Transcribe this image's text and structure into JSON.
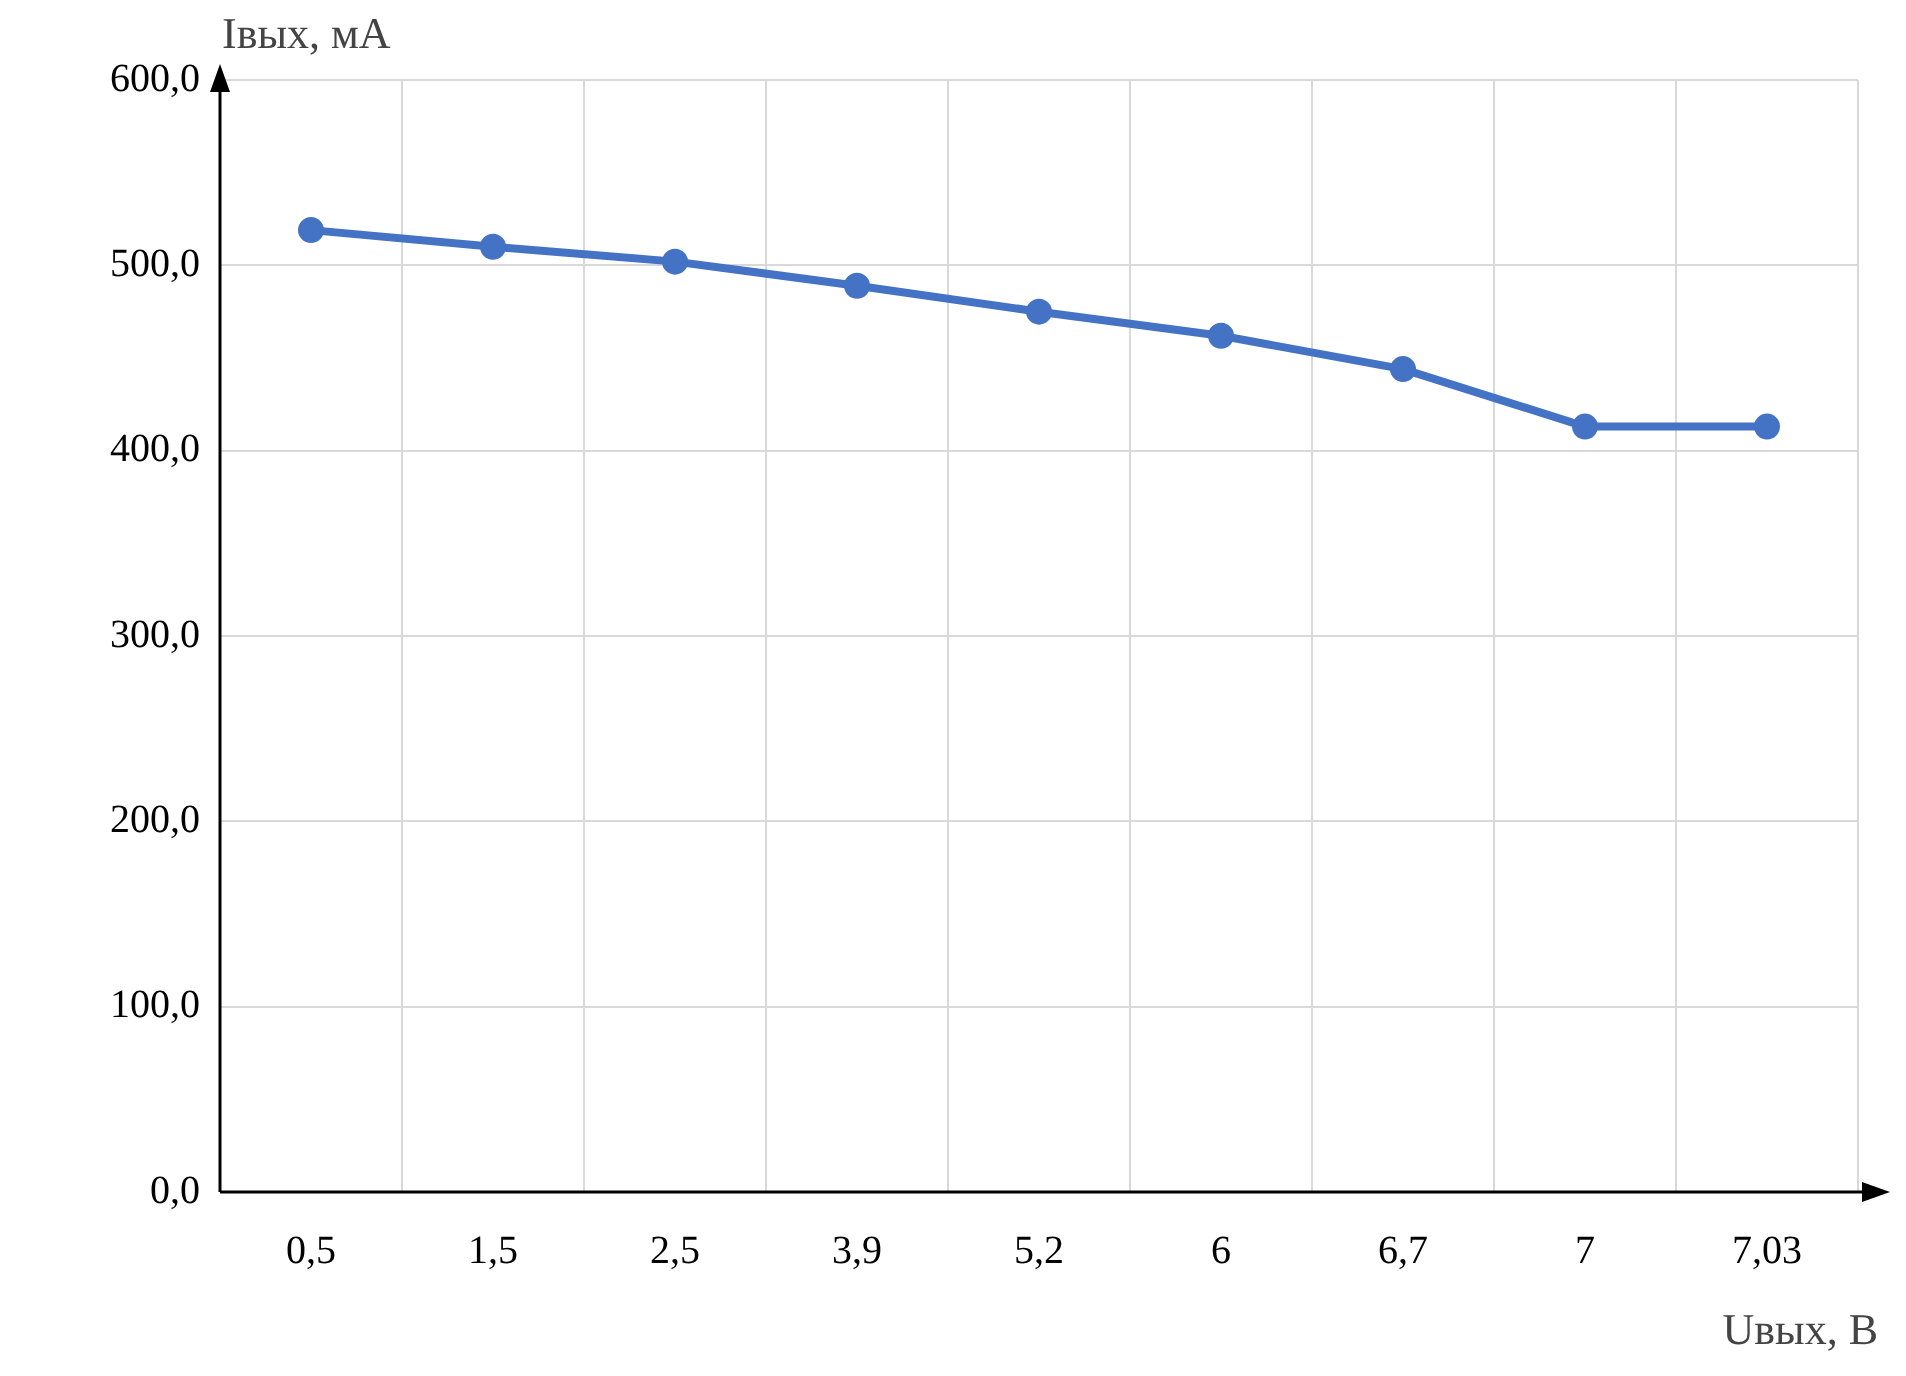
{
  "chart_data": {
    "type": "line",
    "xlabel": "Uвых, В",
    "ylabel": "Iвых, мА",
    "categories": [
      "0,5",
      "1,5",
      "2,5",
      "3,9",
      "5,2",
      "6",
      "6,7",
      "7",
      "7,03"
    ],
    "series": [
      {
        "color": "#4472c4",
        "values": [
          519,
          510,
          502,
          489,
          475,
          462,
          444,
          413,
          413
        ]
      }
    ],
    "ylim": [
      0,
      600
    ],
    "yticks": [
      {
        "value": 0,
        "label": "0,0"
      },
      {
        "value": 100,
        "label": "100,0"
      },
      {
        "value": 200,
        "label": "200,0"
      },
      {
        "value": 300,
        "label": "300,0"
      },
      {
        "value": 400,
        "label": "400,0"
      },
      {
        "value": 500,
        "label": "500,0"
      },
      {
        "value": 600,
        "label": "600,0"
      }
    ],
    "grid": true,
    "legend": false,
    "marker": "circle",
    "line_style": "solid"
  }
}
